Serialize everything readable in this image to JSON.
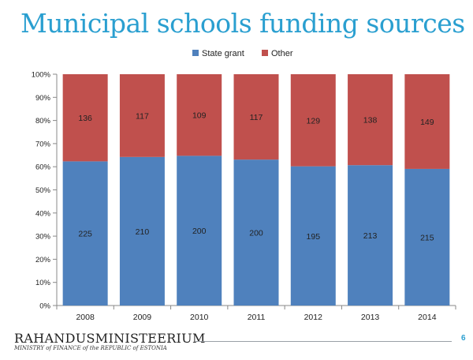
{
  "slide": {
    "title": "Municipal schools funding sources",
    "page_number": "6"
  },
  "footer": {
    "logo_text": "RAHANDUSMINISTEERIUM",
    "logo_subtext": "MINISTRY of FINANCE of the REPUBLIC of ESTONIA"
  },
  "colors": {
    "state_grant": "#4f81bd",
    "other": "#c0504d",
    "title": "#2a9fd0"
  },
  "chart_data": {
    "type": "bar",
    "stacked": "percent",
    "categories": [
      "2008",
      "2009",
      "2010",
      "2011",
      "2012",
      "2013",
      "2014"
    ],
    "series": [
      {
        "name": "State grant",
        "values": [
          225,
          210,
          200,
          200,
          195,
          213,
          215
        ]
      },
      {
        "name": "Other",
        "values": [
          136,
          117,
          109,
          117,
          129,
          138,
          149
        ]
      }
    ],
    "y_tick_labels": [
      "0%",
      "10%",
      "20%",
      "30%",
      "40%",
      "50%",
      "60%",
      "70%",
      "80%",
      "90%",
      "100%"
    ],
    "ylim": [
      0,
      100
    ],
    "grid": false,
    "legend_position": "top"
  }
}
